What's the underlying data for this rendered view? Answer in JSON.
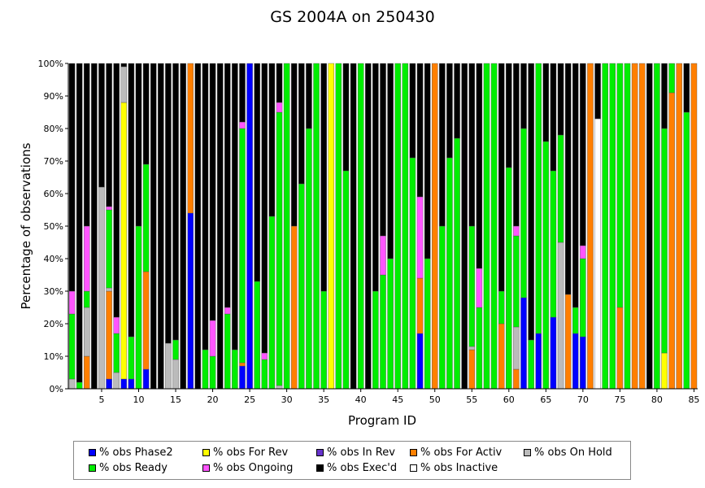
{
  "chart_data": {
    "type": "bar",
    "stacked": true,
    "title": "GS 2004A on 250430",
    "xlabel": "Program ID",
    "ylabel": "Percentage of observations",
    "ylim": [
      0,
      100
    ],
    "y_ticks": [
      "0%",
      "10%",
      "20%",
      "30%",
      "40%",
      "50%",
      "60%",
      "70%",
      "80%",
      "90%",
      "100%"
    ],
    "x_ticks": [
      5,
      10,
      15,
      20,
      25,
      30,
      35,
      40,
      45,
      50,
      55,
      60,
      65,
      70,
      75,
      80,
      85
    ],
    "grid": false,
    "legend_position": "bottom",
    "series": [
      {
        "key": "phase2",
        "name": "% obs Phase2",
        "color": "#0000ff"
      },
      {
        "key": "forrev",
        "name": "% obs For Rev",
        "color": "#ffff00"
      },
      {
        "key": "inrev",
        "name": "% obs In Rev",
        "color": "#6633cc"
      },
      {
        "key": "foractiv",
        "name": "% obs For Activ",
        "color": "#ff7f00"
      },
      {
        "key": "onhold",
        "name": "% obs On Hold",
        "color": "#bbbbbb"
      },
      {
        "key": "ready",
        "name": "% obs Ready",
        "color": "#00ee00"
      },
      {
        "key": "ongoing",
        "name": "% obs Ongoing",
        "color": "#ff55ff"
      },
      {
        "key": "execd",
        "name": "% obs Exec'd",
        "color": "#000000"
      },
      {
        "key": "inactive",
        "name": "% obs Inactive",
        "color": "#ffffff"
      }
    ],
    "stack_order": [
      "phase2",
      "forrev",
      "inrev",
      "foractiv",
      "onhold",
      "inactive",
      "ready",
      "ongoing",
      "execd"
    ],
    "programs": [
      {
        "id": 1,
        "onhold": 3,
        "ready": 20,
        "ongoing": 7,
        "execd": 70
      },
      {
        "id": 2,
        "ready": 2,
        "execd": 98
      },
      {
        "id": 3,
        "foractiv": 10,
        "onhold": 15,
        "ready": 5,
        "ongoing": 20,
        "execd": 50
      },
      {
        "id": 4,
        "execd": 100
      },
      {
        "id": 5,
        "onhold": 62,
        "execd": 38
      },
      {
        "id": 6,
        "phase2": 3,
        "foractiv": 27,
        "onhold": 1,
        "ready": 24,
        "ongoing": 1,
        "execd": 44
      },
      {
        "id": 7,
        "onhold": 5,
        "ready": 12,
        "ongoing": 5,
        "execd": 78
      },
      {
        "id": 8,
        "phase2": 3,
        "forrev": 85,
        "onhold": 11,
        "execd": 1
      },
      {
        "id": 9,
        "phase2": 3,
        "ready": 13,
        "execd": 84
      },
      {
        "id": 10,
        "ready": 50,
        "execd": 50
      },
      {
        "id": 11,
        "phase2": 6,
        "foractiv": 30,
        "ready": 33,
        "execd": 31
      },
      {
        "id": 12,
        "execd": 100
      },
      {
        "id": 13,
        "execd": 100
      },
      {
        "id": 14,
        "onhold": 14,
        "execd": 86
      },
      {
        "id": 15,
        "onhold": 9,
        "ready": 6,
        "execd": 85
      },
      {
        "id": 16,
        "execd": 100
      },
      {
        "id": 17,
        "phase2": 54,
        "foractiv": 46
      },
      {
        "id": 18,
        "execd": 100
      },
      {
        "id": 19,
        "ready": 12,
        "execd": 88
      },
      {
        "id": 20,
        "ready": 10,
        "ongoing": 11,
        "execd": 79
      },
      {
        "id": 21,
        "execd": 100
      },
      {
        "id": 22,
        "ready": 23,
        "ongoing": 2,
        "execd": 75
      },
      {
        "id": 23,
        "ready": 12,
        "execd": 88
      },
      {
        "id": 24,
        "phase2": 7,
        "foractiv": 1,
        "ready": 72,
        "ongoing": 2,
        "execd": 18
      },
      {
        "id": 25,
        "phase2": 100
      },
      {
        "id": 26,
        "ready": 33,
        "execd": 67
      },
      {
        "id": 27,
        "ready": 9,
        "ongoing": 2,
        "execd": 89
      },
      {
        "id": 28,
        "ready": 53,
        "execd": 47
      },
      {
        "id": 29,
        "onhold": 1,
        "ready": 84,
        "ongoing": 3,
        "execd": 12
      },
      {
        "id": 30,
        "ready": 100
      },
      {
        "id": 31,
        "foractiv": 50,
        "execd": 50
      },
      {
        "id": 32,
        "ready": 63,
        "execd": 37
      },
      {
        "id": 33,
        "ready": 80,
        "execd": 20
      },
      {
        "id": 34,
        "ready": 100
      },
      {
        "id": 35,
        "ready": 30,
        "execd": 70
      },
      {
        "id": 36,
        "forrev": 100
      },
      {
        "id": 37,
        "ready": 100
      },
      {
        "id": 38,
        "ready": 67,
        "execd": 33
      },
      {
        "id": 39,
        "execd": 100
      },
      {
        "id": 40,
        "ready": 100
      },
      {
        "id": 41,
        "execd": 100
      },
      {
        "id": 42,
        "ready": 30,
        "execd": 70
      },
      {
        "id": 43,
        "ready": 35,
        "ongoing": 12,
        "execd": 53
      },
      {
        "id": 44,
        "ready": 40,
        "execd": 60
      },
      {
        "id": 45,
        "ready": 100
      },
      {
        "id": 46,
        "ready": 100
      },
      {
        "id": 47,
        "ready": 71,
        "execd": 29
      },
      {
        "id": 48,
        "phase2": 17,
        "foractiv": 17,
        "ongoing": 25,
        "execd": 41
      },
      {
        "id": 49,
        "ready": 40,
        "execd": 60
      },
      {
        "id": 50,
        "foractiv": 100
      },
      {
        "id": 51,
        "ready": 50,
        "execd": 50
      },
      {
        "id": 52,
        "ready": 71,
        "execd": 29
      },
      {
        "id": 53,
        "ready": 77,
        "execd": 23
      },
      {
        "id": 54,
        "execd": 100
      },
      {
        "id": 55,
        "foractiv": 12,
        "onhold": 1,
        "ready": 37,
        "execd": 50
      },
      {
        "id": 56,
        "ready": 25,
        "ongoing": 12,
        "execd": 63
      },
      {
        "id": 57,
        "ready": 100
      },
      {
        "id": 58,
        "ready": 100
      },
      {
        "id": 59,
        "foractiv": 20,
        "ready": 10,
        "execd": 70
      },
      {
        "id": 60,
        "ready": 68,
        "execd": 32
      },
      {
        "id": 61,
        "foractiv": 6,
        "onhold": 13,
        "ready": 28,
        "ongoing": 3,
        "execd": 50
      },
      {
        "id": 62,
        "phase2": 28,
        "ready": 52,
        "execd": 20
      },
      {
        "id": 63,
        "ready": 15,
        "execd": 85
      },
      {
        "id": 64,
        "phase2": 17,
        "ready": 83
      },
      {
        "id": 65,
        "ready": 76,
        "execd": 24
      },
      {
        "id": 66,
        "phase2": 22,
        "ready": 45,
        "execd": 33
      },
      {
        "id": 67,
        "onhold": 45,
        "ready": 33,
        "execd": 22
      },
      {
        "id": 68,
        "foractiv": 29,
        "execd": 71
      },
      {
        "id": 69,
        "phase2": 17,
        "ready": 8,
        "execd": 75
      },
      {
        "id": 70,
        "phase2": 16,
        "ready": 24,
        "ongoing": 4,
        "execd": 56
      },
      {
        "id": 71,
        "foractiv": 100
      },
      {
        "id": 72,
        "inactive": 83,
        "execd": 17
      },
      {
        "id": 73,
        "ready": 100
      },
      {
        "id": 74,
        "ready": 100
      },
      {
        "id": 75,
        "foractiv": 25,
        "ready": 75
      },
      {
        "id": 76,
        "ready": 100
      },
      {
        "id": 77,
        "foractiv": 100
      },
      {
        "id": 78,
        "foractiv": 100
      },
      {
        "id": 79,
        "execd": 100
      },
      {
        "id": 80,
        "ready": 100
      },
      {
        "id": 81,
        "forrev": 11,
        "ready": 69,
        "execd": 20
      },
      {
        "id": 82,
        "foractiv": 91,
        "ready": 9
      },
      {
        "id": 83,
        "foractiv": 100
      },
      {
        "id": 84,
        "ready": 85,
        "execd": 15
      },
      {
        "id": 85,
        "foractiv": 100
      }
    ]
  }
}
